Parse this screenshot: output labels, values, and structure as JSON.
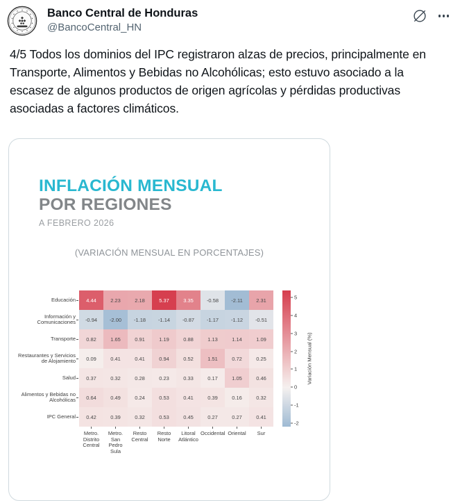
{
  "tweet": {
    "author_name": "Banco Central de Honduras",
    "author_handle": "@BancoCentral_HN",
    "body": "4/5 Todos los dominios del IPC registraron alzas de precios, principalmente en Transporte, Alimentos y Bebidas no Alcohólicas; esto estuvo asociado a la escasez de algunos productos de origen agrícolas y pérdidas productivas asociadas a factores climáticos.",
    "icons": [
      "grok-icon",
      "more-icon",
      "seal-avatar"
    ]
  },
  "chart_data": {
    "type": "heatmap",
    "title_accent": "INFLACIÓN MENSUAL",
    "title_rest": "POR REGIONES",
    "subtitle": "A FEBRERO 2026",
    "caption": "(VARIACIÓN MENSUAL EN PORCENTAJES)",
    "rows": [
      {
        "label_lines": [
          "Educación"
        ],
        "values": [
          4.44,
          2.23,
          2.18,
          5.37,
          3.35,
          -0.58,
          -2.11,
          2.31
        ]
      },
      {
        "label_lines": [
          "Información y",
          "Comunicaciones"
        ],
        "values": [
          -0.94,
          -2.0,
          -1.18,
          -1.14,
          -0.87,
          -1.17,
          -1.12,
          -0.51
        ]
      },
      {
        "label_lines": [
          "Transporte"
        ],
        "values": [
          0.82,
          1.65,
          0.91,
          1.19,
          0.88,
          1.13,
          1.14,
          1.09
        ]
      },
      {
        "label_lines": [
          "Restaurantes y Servicios",
          "de Alojamiento"
        ],
        "values": [
          0.09,
          0.41,
          0.41,
          0.94,
          0.52,
          1.51,
          0.72,
          0.25
        ]
      },
      {
        "label_lines": [
          "Salud"
        ],
        "values": [
          0.37,
          0.32,
          0.28,
          0.23,
          0.33,
          0.17,
          1.05,
          0.46
        ]
      },
      {
        "label_lines": [
          "Alimentos y Bebidas no",
          "Alcohólicas"
        ],
        "values": [
          0.64,
          0.49,
          0.24,
          0.53,
          0.41,
          0.39,
          0.16,
          0.32
        ]
      },
      {
        "label_lines": [
          "IPC General"
        ],
        "values": [
          0.42,
          0.39,
          0.32,
          0.53,
          0.45,
          0.27,
          0.27,
          0.41
        ]
      }
    ],
    "columns": [
      [
        "Metro.",
        "Distrito",
        "Central"
      ],
      [
        "Metro. San",
        "Pedro Sula"
      ],
      [
        "Resto",
        "Central"
      ],
      [
        "Resto Norte"
      ],
      [
        "Litoral",
        "Atlántico"
      ],
      [
        "Occidental"
      ],
      [
        "Oriental"
      ],
      [
        "Sur"
      ]
    ],
    "colorbar": {
      "label": "Variación Mensual (%)",
      "ticks": [
        5,
        4,
        3,
        2,
        1,
        0,
        -1,
        -2
      ],
      "vmax": 5.4,
      "vmin": -2.2
    },
    "colors": {
      "max_red": "#d63e4e",
      "mid_white": "#f6f1ef",
      "min_blue": "#9ebad3",
      "accent_cyan": "#29b8d0",
      "title_gray": "#828689",
      "date_gray": "#9a9ea2",
      "caption_gray": "#8f9499",
      "cell_text_dark": "#474747",
      "cell_text_light": "#ffffff"
    },
    "legend_position": "right",
    "grid": false
  }
}
